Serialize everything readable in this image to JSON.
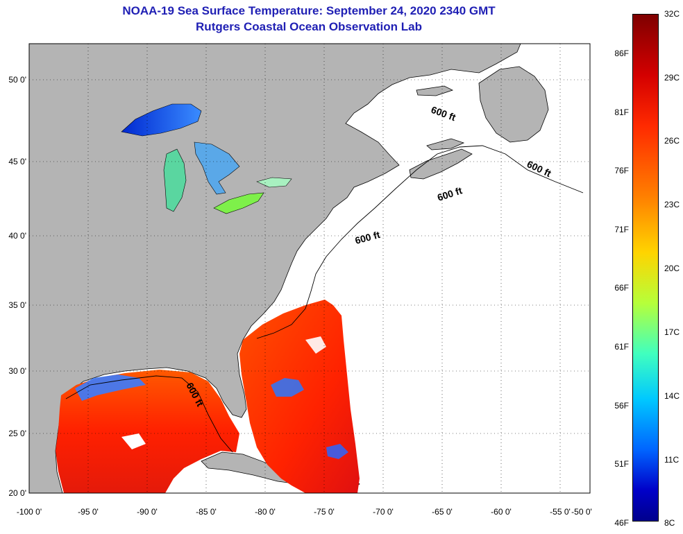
{
  "title": {
    "line1": "NOAA-19 Sea Surface Temperature:  September 24, 2020 2340 GMT",
    "line2": "Rutgers Coastal Ocean Observation Lab"
  },
  "axes": {
    "lon_labels": [
      "-100 0'",
      "-95 0'",
      "-90 0'",
      "-85 0'",
      "-80 0'",
      "-75 0'",
      "-70 0'",
      "-65 0'",
      "-60 0'",
      "-55 0'",
      "-50 0'"
    ],
    "lat_labels": [
      "50 0'",
      "45 0'",
      "40 0'",
      "35 0'",
      "30 0'",
      "25 0'",
      "20 0'"
    ]
  },
  "contour_labels": [
    "600 ft",
    "600 ft",
    "600 ft",
    "600 ft",
    "600 ft"
  ],
  "colorbar": {
    "fahrenheit": [
      "86F",
      "81F",
      "76F",
      "71F",
      "66F",
      "61F",
      "56F",
      "51F",
      "46F"
    ],
    "celsius": [
      "32C",
      "29C",
      "26C",
      "23C",
      "20C",
      "17C",
      "14C",
      "11C",
      "8C"
    ]
  },
  "colors": {
    "land": "#b4b4b4",
    "title": "#1f1fb4",
    "warm": "#ff2a00",
    "cold": "#0064ff"
  }
}
